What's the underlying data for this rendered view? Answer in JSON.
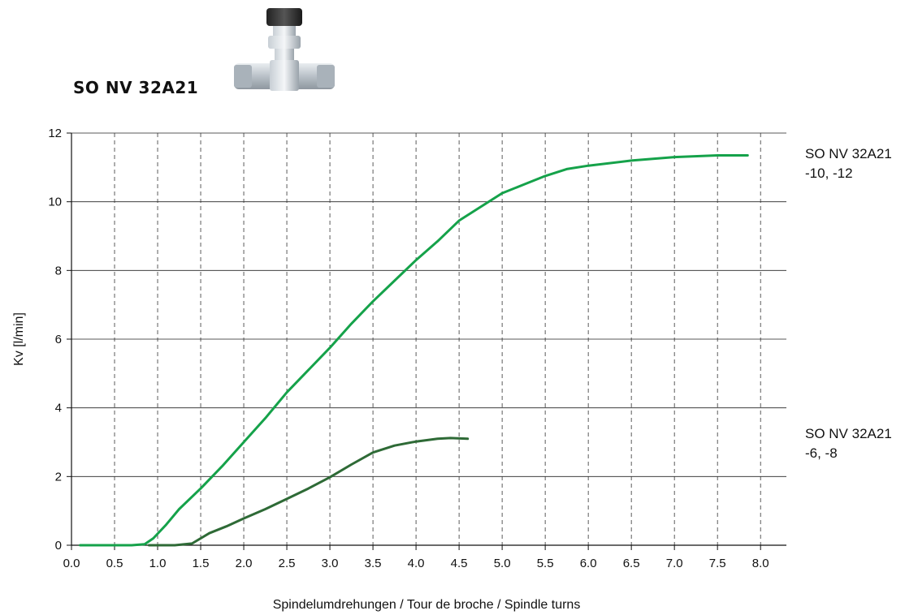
{
  "header": {
    "product_name": "SO NV 32A21"
  },
  "image": {
    "icon": "needle-valve-icon"
  },
  "chart_data": {
    "type": "line",
    "title": "",
    "xlabel": "Spindelumdrehungen / Tour de broche / Spindle turns",
    "ylabel": "Kv [l/min]",
    "xlim": [
      0.0,
      8.3
    ],
    "ylim": [
      0,
      12
    ],
    "x_ticks": [
      "0.0",
      "0.5",
      "1.0",
      "1.5",
      "2.0",
      "2.5",
      "3.0",
      "3.5",
      "4.0",
      "4.5",
      "5.0",
      "5.5",
      "6.0",
      "6.5",
      "7.0",
      "7.5",
      "8.0"
    ],
    "y_ticks": [
      "0",
      "2",
      "4",
      "6",
      "8",
      "10",
      "12"
    ],
    "grid": {
      "vertical": "dashed",
      "horizontal": "solid"
    },
    "series": [
      {
        "label_line1": "SO NV 32A21",
        "label_line2": "-10, -12",
        "color": "#15a24a",
        "points": [
          [
            0.1,
            0.0
          ],
          [
            0.5,
            0.0
          ],
          [
            0.7,
            0.0
          ],
          [
            0.85,
            0.03
          ],
          [
            0.95,
            0.2
          ],
          [
            1.1,
            0.6
          ],
          [
            1.25,
            1.05
          ],
          [
            1.5,
            1.65
          ],
          [
            1.75,
            2.3
          ],
          [
            2.0,
            3.0
          ],
          [
            2.25,
            3.7
          ],
          [
            2.5,
            4.45
          ],
          [
            2.75,
            5.1
          ],
          [
            3.0,
            5.75
          ],
          [
            3.25,
            6.45
          ],
          [
            3.5,
            7.1
          ],
          [
            3.75,
            7.7
          ],
          [
            4.0,
            8.3
          ],
          [
            4.25,
            8.85
          ],
          [
            4.5,
            9.45
          ],
          [
            4.75,
            9.85
          ],
          [
            5.0,
            10.25
          ],
          [
            5.25,
            10.5
          ],
          [
            5.5,
            10.75
          ],
          [
            5.75,
            10.95
          ],
          [
            6.0,
            11.05
          ],
          [
            6.5,
            11.2
          ],
          [
            7.0,
            11.3
          ],
          [
            7.5,
            11.35
          ],
          [
            7.85,
            11.35
          ]
        ]
      },
      {
        "label_line1": "SO NV 32A21",
        "label_line2": "-6, -8",
        "color": "#2e6a36",
        "points": [
          [
            0.9,
            0.0
          ],
          [
            1.2,
            0.0
          ],
          [
            1.4,
            0.05
          ],
          [
            1.6,
            0.35
          ],
          [
            1.8,
            0.55
          ],
          [
            2.0,
            0.78
          ],
          [
            2.25,
            1.05
          ],
          [
            2.5,
            1.35
          ],
          [
            2.75,
            1.65
          ],
          [
            3.0,
            1.98
          ],
          [
            3.25,
            2.35
          ],
          [
            3.5,
            2.7
          ],
          [
            3.75,
            2.9
          ],
          [
            4.0,
            3.02
          ],
          [
            4.25,
            3.1
          ],
          [
            4.4,
            3.12
          ],
          [
            4.6,
            3.1
          ]
        ]
      }
    ]
  }
}
